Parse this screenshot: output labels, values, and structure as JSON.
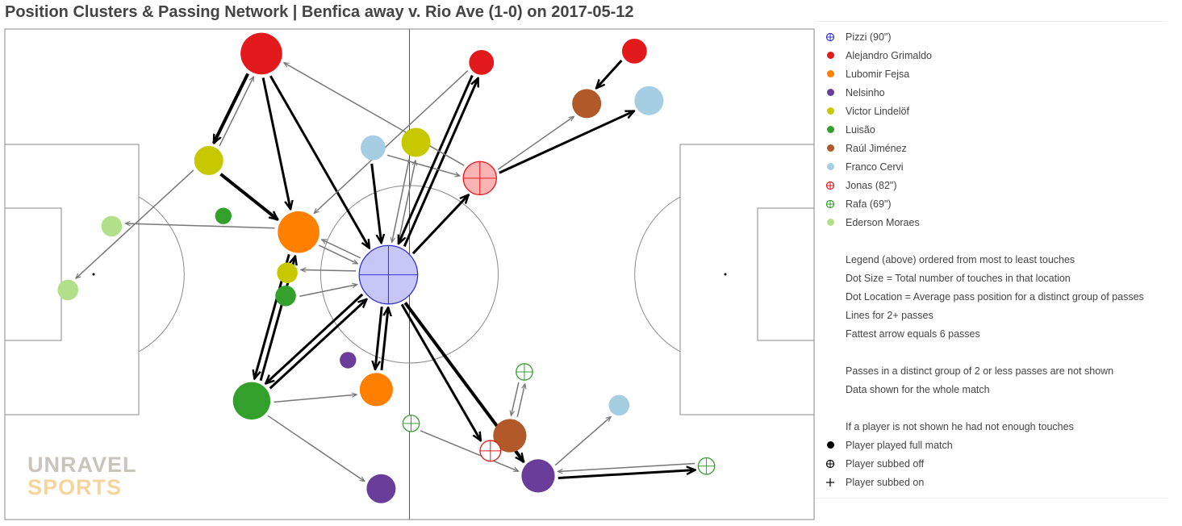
{
  "chart_data": {
    "type": "scatter",
    "title": "Position Clusters & Passing Network | Benfica away v. Rio Ave (1-0) on 2017-05-12",
    "players": [
      {
        "name": "Pizzi (90\")",
        "color": "#3333cc",
        "marker": "subbed-off"
      },
      {
        "name": "Alejandro Grimaldo",
        "color": "#e31a1c",
        "marker": "full"
      },
      {
        "name": "Lubomir Fejsa",
        "color": "#ff7f00",
        "marker": "full"
      },
      {
        "name": "Nelsinho",
        "color": "#6a3d9a",
        "marker": "full"
      },
      {
        "name": "Victor Lindelöf",
        "color": "#c8c800",
        "marker": "full"
      },
      {
        "name": "Luisão",
        "color": "#33a02c",
        "marker": "full"
      },
      {
        "name": "Raúl Jiménez",
        "color": "#b15928",
        "marker": "full"
      },
      {
        "name": "Franco Cervi",
        "color": "#a6cee3",
        "marker": "full"
      },
      {
        "name": "Jonas (82\")",
        "color": "#e31a1c",
        "marker": "subbed-off"
      },
      {
        "name": "Rafa (69\")",
        "color": "#33a02c",
        "marker": "subbed-off"
      },
      {
        "name": "Ederson Moraes",
        "color": "#b2df8a",
        "marker": "full"
      }
    ],
    "clusters": [
      {
        "id": "pz",
        "x": 47.4,
        "y": 49.9,
        "size": 6,
        "color": "#3333cc",
        "fill": "#c7c7f7",
        "sub": true
      },
      {
        "id": "gr1",
        "x": 31.7,
        "y": 95.0,
        "size": 4,
        "color": "#e31a1c"
      },
      {
        "id": "gr2",
        "x": 58.9,
        "y": 93.2,
        "size": 2,
        "color": "#e31a1c"
      },
      {
        "id": "gr3",
        "x": 77.8,
        "y": 95.5,
        "size": 2,
        "color": "#e31a1c"
      },
      {
        "id": "fe1",
        "x": 36.3,
        "y": 58.6,
        "size": 4,
        "color": "#ff7f00"
      },
      {
        "id": "fe2",
        "x": 45.9,
        "y": 26.5,
        "size": 3,
        "color": "#ff7f00"
      },
      {
        "id": "ne1",
        "x": 46.5,
        "y": 6.3,
        "size": 2.5,
        "color": "#6a3d9a"
      },
      {
        "id": "ne2",
        "x": 65.9,
        "y": 8.9,
        "size": 3,
        "color": "#6a3d9a"
      },
      {
        "id": "ne3",
        "x": 42.4,
        "y": 32.5,
        "size": 1,
        "color": "#6a3d9a"
      },
      {
        "id": "vl1",
        "x": 25.2,
        "y": 73.2,
        "size": 2.5,
        "color": "#c8c800"
      },
      {
        "id": "vl2",
        "x": 50.8,
        "y": 76.9,
        "size": 2.5,
        "color": "#c8c800"
      },
      {
        "id": "vl3",
        "x": 34.9,
        "y": 50.3,
        "size": 1.5,
        "color": "#c8c800"
      },
      {
        "id": "lu1",
        "x": 30.5,
        "y": 24.2,
        "size": 3.5,
        "color": "#33a02c"
      },
      {
        "id": "lu2",
        "x": 34.7,
        "y": 45.6,
        "size": 1.5,
        "color": "#33a02c"
      },
      {
        "id": "lu3",
        "x": 27.0,
        "y": 61.9,
        "size": 1,
        "color": "#33a02c"
      },
      {
        "id": "rj1",
        "x": 71.9,
        "y": 84.8,
        "size": 2.5,
        "color": "#b15928"
      },
      {
        "id": "rj2",
        "x": 62.4,
        "y": 17.1,
        "size": 3,
        "color": "#b15928"
      },
      {
        "id": "cv1",
        "x": 79.6,
        "y": 85.4,
        "size": 2.5,
        "color": "#a6cee3"
      },
      {
        "id": "cv2",
        "x": 45.5,
        "y": 75.8,
        "size": 2,
        "color": "#a6cee3"
      },
      {
        "id": "cv3",
        "x": 75.9,
        "y": 23.3,
        "size": 1.5,
        "color": "#a6cee3"
      },
      {
        "id": "jo1",
        "x": 58.7,
        "y": 69.6,
        "size": 3,
        "color": "#e31a1c",
        "fill": "#fbb4b4",
        "sub": true
      },
      {
        "id": "jo2",
        "x": 60.0,
        "y": 14.0,
        "size": 1.5,
        "color": "#e31a1c",
        "sub": true
      },
      {
        "id": "ra1",
        "x": 64.2,
        "y": 30.1,
        "size": 1,
        "color": "#33a02c",
        "sub": true
      },
      {
        "id": "ra2",
        "x": 50.2,
        "y": 19.6,
        "size": 1,
        "color": "#33a02c",
        "sub": true
      },
      {
        "id": "ra3",
        "x": 86.7,
        "y": 10.9,
        "size": 1,
        "color": "#33a02c",
        "sub": true
      },
      {
        "id": "ed1",
        "x": 13.2,
        "y": 59.8,
        "size": 1.5,
        "color": "#b2df8a"
      },
      {
        "id": "ed2",
        "x": 7.8,
        "y": 46.8,
        "size": 1.5,
        "color": "#b2df8a"
      }
    ],
    "passes": [
      {
        "from": "gr1",
        "to": "vl1",
        "count": 6
      },
      {
        "from": "gr1",
        "to": "fe1",
        "count": 5
      },
      {
        "from": "gr1",
        "to": "pz",
        "count": 5
      },
      {
        "from": "vl1",
        "to": "fe1",
        "count": 6
      },
      {
        "from": "vl1",
        "to": "gr1",
        "count": 3
      },
      {
        "from": "vl1",
        "to": "ed2",
        "count": 3
      },
      {
        "from": "fe1",
        "to": "ed1",
        "count": 3
      },
      {
        "from": "fe1",
        "to": "lu1",
        "count": 5
      },
      {
        "from": "fe1",
        "to": "pz",
        "count": 3
      },
      {
        "from": "pz",
        "to": "fe1",
        "count": 3
      },
      {
        "from": "pz",
        "to": "vl3",
        "count": 3
      },
      {
        "from": "pz",
        "to": "lu1",
        "count": 5
      },
      {
        "from": "pz",
        "to": "jo1",
        "count": 5
      },
      {
        "from": "pz",
        "to": "jo2",
        "count": 5
      },
      {
        "from": "pz",
        "to": "ne2",
        "count": 6
      },
      {
        "from": "pz",
        "to": "fe2",
        "count": 5
      },
      {
        "from": "pz",
        "to": "vl2",
        "count": 3
      },
      {
        "from": "pz",
        "to": "gr2",
        "count": 5
      },
      {
        "from": "lu1",
        "to": "fe1",
        "count": 5
      },
      {
        "from": "lu1",
        "to": "pz",
        "count": 5
      },
      {
        "from": "lu1",
        "to": "fe2",
        "count": 3
      },
      {
        "from": "lu1",
        "to": "ne1",
        "count": 3
      },
      {
        "from": "lu2",
        "to": "pz",
        "count": 3
      },
      {
        "from": "fe2",
        "to": "pz",
        "count": 5
      },
      {
        "from": "cv2",
        "to": "pz",
        "count": 5
      },
      {
        "from": "cv2",
        "to": "jo1",
        "count": 3
      },
      {
        "from": "vl2",
        "to": "pz",
        "count": 3
      },
      {
        "from": "gr2",
        "to": "pz",
        "count": 5
      },
      {
        "from": "gr2",
        "to": "fe1",
        "count": 3
      },
      {
        "from": "jo1",
        "to": "gr1",
        "count": 3
      },
      {
        "from": "jo1",
        "to": "cv1",
        "count": 5
      },
      {
        "from": "jo1",
        "to": "rj1",
        "count": 3
      },
      {
        "from": "gr3",
        "to": "rj1",
        "count": 5
      },
      {
        "from": "cv1",
        "to": "cv1",
        "count": 0
      },
      {
        "from": "ne2",
        "to": "ra3",
        "count": 5
      },
      {
        "from": "ne2",
        "to": "cv3",
        "count": 3
      },
      {
        "from": "ra1",
        "to": "rj2",
        "count": 3
      },
      {
        "from": "rj2",
        "to": "ra1",
        "count": 3
      },
      {
        "from": "ra2",
        "to": "ne2",
        "count": 3
      },
      {
        "from": "ra3",
        "to": "ne2",
        "count": 3
      }
    ]
  },
  "legend": {
    "players": [
      "Pizzi (90\")",
      "Alejandro Grimaldo",
      "Lubomir Fejsa",
      "Nelsinho",
      "Victor Lindelöf",
      "Luisão",
      "Raúl Jiménez",
      "Franco Cervi",
      "Jonas (82\")",
      "Rafa (69\")",
      "Ederson Moraes"
    ],
    "notes": [
      "Legend (above) ordered from most to least touches",
      "Dot Size = Total number of touches in that location",
      "Dot Location = Average pass position for a distinct group of passes",
      "Lines for 2+ passes",
      "Fattest arrow equals 6 passes"
    ],
    "notes2": [
      "Passes in a distinct group of 2 or less passes are not shown",
      "Data shown for the whole match"
    ],
    "notes3": [
      "If a player is not shown he had not enough touches"
    ],
    "key": [
      "Player played full match",
      "Player subbed off",
      "Player subbed on"
    ]
  },
  "watermark": {
    "line1": "UNRAVEL",
    "line2": "SPORTS"
  }
}
